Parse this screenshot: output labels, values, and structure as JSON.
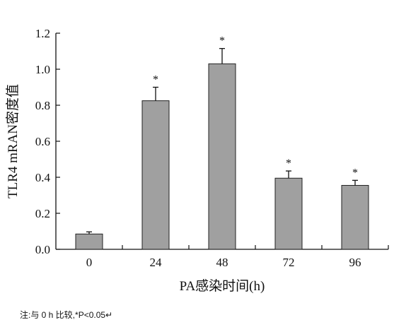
{
  "chart_data": {
    "type": "bar",
    "categories": [
      "0",
      "24",
      "48",
      "72",
      "96"
    ],
    "values": [
      0.085,
      0.825,
      1.03,
      0.395,
      0.355
    ],
    "errors": [
      0.012,
      0.075,
      0.085,
      0.04,
      0.028
    ],
    "significance": [
      "",
      "*",
      "*",
      "*",
      "*"
    ],
    "xlabel": "PA感染时间(h)",
    "ylabel": "TLR4 mRAN密度值",
    "ylim": [
      0,
      1.2
    ],
    "yticks": [
      "0.0",
      "0.2",
      "0.4",
      "0.6",
      "0.8",
      "1.0",
      "1.2"
    ],
    "bar_color": "#a0a0a0",
    "grid": false,
    "legend": "none"
  },
  "note": "注:与 0 h 比较,*P<0.05↵"
}
